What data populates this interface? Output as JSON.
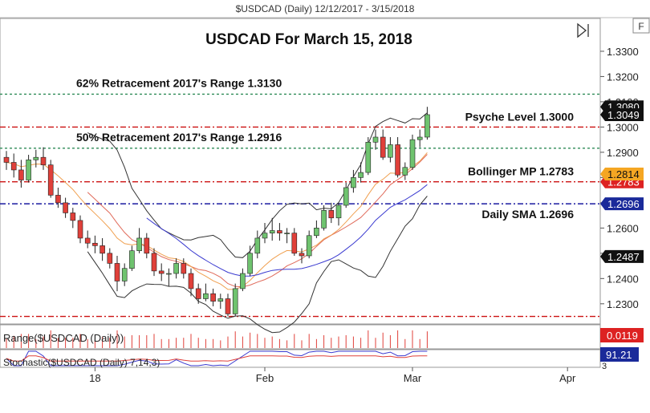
{
  "header": {
    "window_title": "$USDCAD (Daily)  12/12/2017 - 3/15/2018",
    "f_button": "F"
  },
  "colors": {
    "candle_up": "#6fc36f",
    "candle_down": "#e0403a",
    "wick": "#222222",
    "bollinger": "#333333",
    "sma": "#3a3ad0",
    "bb_mid": "#e06a5a",
    "ema": "#f0a050",
    "level_green": "#2e8b57",
    "level_red": "#cc1111",
    "level_blue": "#1a1aa0",
    "tag_black": "#111111",
    "tag_orange": "#f5a623",
    "tag_blue": "#1a2a9a",
    "tag_red": "#dd2222"
  },
  "chart_data": {
    "type": "candlestick",
    "title": "USDCAD For March 15, 2018",
    "symbol": "$USDCAD (Daily)",
    "date_range": "12/12/2017 - 3/15/2018",
    "ylim": [
      1.222,
      1.343
    ],
    "y_ticks": [
      "1.2300",
      "1.2400",
      "1.2500",
      "1.2600",
      "1.2700",
      "1.2800",
      "1.2900",
      "1.3000",
      "1.3100",
      "1.3200",
      "1.3300"
    ],
    "x_ticks": [
      {
        "label": "18",
        "index": 12
      },
      {
        "label": "Feb",
        "index": 35
      },
      {
        "label": "Mar",
        "index": 55
      },
      {
        "label": "Apr",
        "index": 76
      }
    ],
    "price_tags": [
      {
        "label": "1.3080",
        "value": 1.308,
        "style": "black"
      },
      {
        "label": "1.3049",
        "value": 1.3049,
        "style": "black"
      },
      {
        "label": "1.2814",
        "value": 1.2814,
        "style": "orange"
      },
      {
        "label": "1.2783",
        "value": 1.2783,
        "style": "red"
      },
      {
        "label": "1.2696",
        "value": 1.2696,
        "style": "blue"
      },
      {
        "label": "1.2487",
        "value": 1.2487,
        "style": "black"
      }
    ],
    "levels": [
      {
        "label": "62% Retracement 2017's Range 1.3130",
        "value": 1.313,
        "color": "green",
        "label_side": "left"
      },
      {
        "label": "Psyche Level 1.3000",
        "value": 1.3,
        "color": "red",
        "label_side": "right"
      },
      {
        "label": "50% Retracement 2017's Range 1.2916",
        "value": 1.2916,
        "color": "green",
        "label_side": "left"
      },
      {
        "label": "Bollinger MP 1.2783",
        "value": 1.2783,
        "color": "red",
        "label_side": "right"
      },
      {
        "label": "Daily SMA 1.2696",
        "value": 1.2696,
        "color": "blue",
        "label_side": "right"
      },
      {
        "label": "",
        "value": 1.225,
        "color": "red",
        "label_side": "none"
      }
    ],
    "candles": [
      [
        1.288,
        1.2905,
        1.283,
        1.286
      ],
      [
        1.286,
        1.2895,
        1.28,
        1.283
      ],
      [
        1.283,
        1.287,
        1.276,
        1.279
      ],
      [
        1.279,
        1.289,
        1.278,
        1.287
      ],
      [
        1.287,
        1.291,
        1.284,
        1.288
      ],
      [
        1.288,
        1.292,
        1.283,
        1.285
      ],
      [
        1.285,
        1.287,
        1.272,
        1.273
      ],
      [
        1.273,
        1.276,
        1.268,
        1.27
      ],
      [
        1.27,
        1.272,
        1.264,
        1.266
      ],
      [
        1.266,
        1.268,
        1.26,
        1.263
      ],
      [
        1.263,
        1.265,
        1.254,
        1.256
      ],
      [
        1.256,
        1.259,
        1.252,
        1.254
      ],
      [
        1.254,
        1.257,
        1.25,
        1.253
      ],
      [
        1.253,
        1.256,
        1.247,
        1.25
      ],
      [
        1.25,
        1.252,
        1.244,
        1.246
      ],
      [
        1.246,
        1.249,
        1.235,
        1.239
      ],
      [
        1.239,
        1.246,
        1.237,
        1.244
      ],
      [
        1.244,
        1.253,
        1.243,
        1.251
      ],
      [
        1.251,
        1.26,
        1.25,
        1.256
      ],
      [
        1.256,
        1.258,
        1.248,
        1.25
      ],
      [
        1.25,
        1.252,
        1.241,
        1.243
      ],
      [
        1.243,
        1.246,
        1.239,
        1.242
      ],
      [
        1.242,
        1.244,
        1.237,
        1.242
      ],
      [
        1.242,
        1.248,
        1.24,
        1.246
      ],
      [
        1.246,
        1.248,
        1.24,
        1.242
      ],
      [
        1.242,
        1.244,
        1.233,
        1.236
      ],
      [
        1.236,
        1.238,
        1.23,
        1.232
      ],
      [
        1.232,
        1.238,
        1.231,
        1.234
      ],
      [
        1.234,
        1.236,
        1.229,
        1.231
      ],
      [
        1.231,
        1.234,
        1.228,
        1.232
      ],
      [
        1.232,
        1.234,
        1.225,
        1.226
      ],
      [
        1.226,
        1.238,
        1.225,
        1.236
      ],
      [
        1.236,
        1.244,
        1.235,
        1.242
      ],
      [
        1.242,
        1.253,
        1.241,
        1.25
      ],
      [
        1.25,
        1.259,
        1.248,
        1.256
      ],
      [
        1.256,
        1.262,
        1.254,
        1.258
      ],
      [
        1.258,
        1.264,
        1.255,
        1.259
      ],
      [
        1.259,
        1.262,
        1.255,
        1.258
      ],
      [
        1.258,
        1.26,
        1.254,
        1.258
      ],
      [
        1.258,
        1.26,
        1.249,
        1.25
      ],
      [
        1.25,
        1.252,
        1.246,
        1.249
      ],
      [
        1.249,
        1.259,
        1.248,
        1.257
      ],
      [
        1.257,
        1.263,
        1.256,
        1.26
      ],
      [
        1.26,
        1.269,
        1.259,
        1.267
      ],
      [
        1.267,
        1.27,
        1.262,
        1.264
      ],
      [
        1.264,
        1.27,
        1.261,
        1.269
      ],
      [
        1.269,
        1.278,
        1.268,
        1.276
      ],
      [
        1.276,
        1.283,
        1.274,
        1.28
      ],
      [
        1.28,
        1.286,
        1.278,
        1.282
      ],
      [
        1.282,
        1.296,
        1.281,
        1.294
      ],
      [
        1.294,
        1.299,
        1.291,
        1.296
      ],
      [
        1.296,
        1.299,
        1.287,
        1.288
      ],
      [
        1.288,
        1.296,
        1.286,
        1.293
      ],
      [
        1.293,
        1.296,
        1.28,
        1.281
      ],
      [
        1.281,
        1.286,
        1.279,
        1.284
      ],
      [
        1.284,
        1.297,
        1.283,
        1.295
      ],
      [
        1.295,
        1.299,
        1.292,
        1.296
      ],
      [
        1.296,
        1.308,
        1.295,
        1.3049
      ]
    ],
    "indicators": {
      "range_label": "Range($USDCAD (Daily))",
      "range_value": "0.0119",
      "stoch_label": "Stochastic($USDCAD (Daily) 7,14,3)",
      "stoch_value": "91.21",
      "stoch_tag_secondary": "3"
    }
  }
}
